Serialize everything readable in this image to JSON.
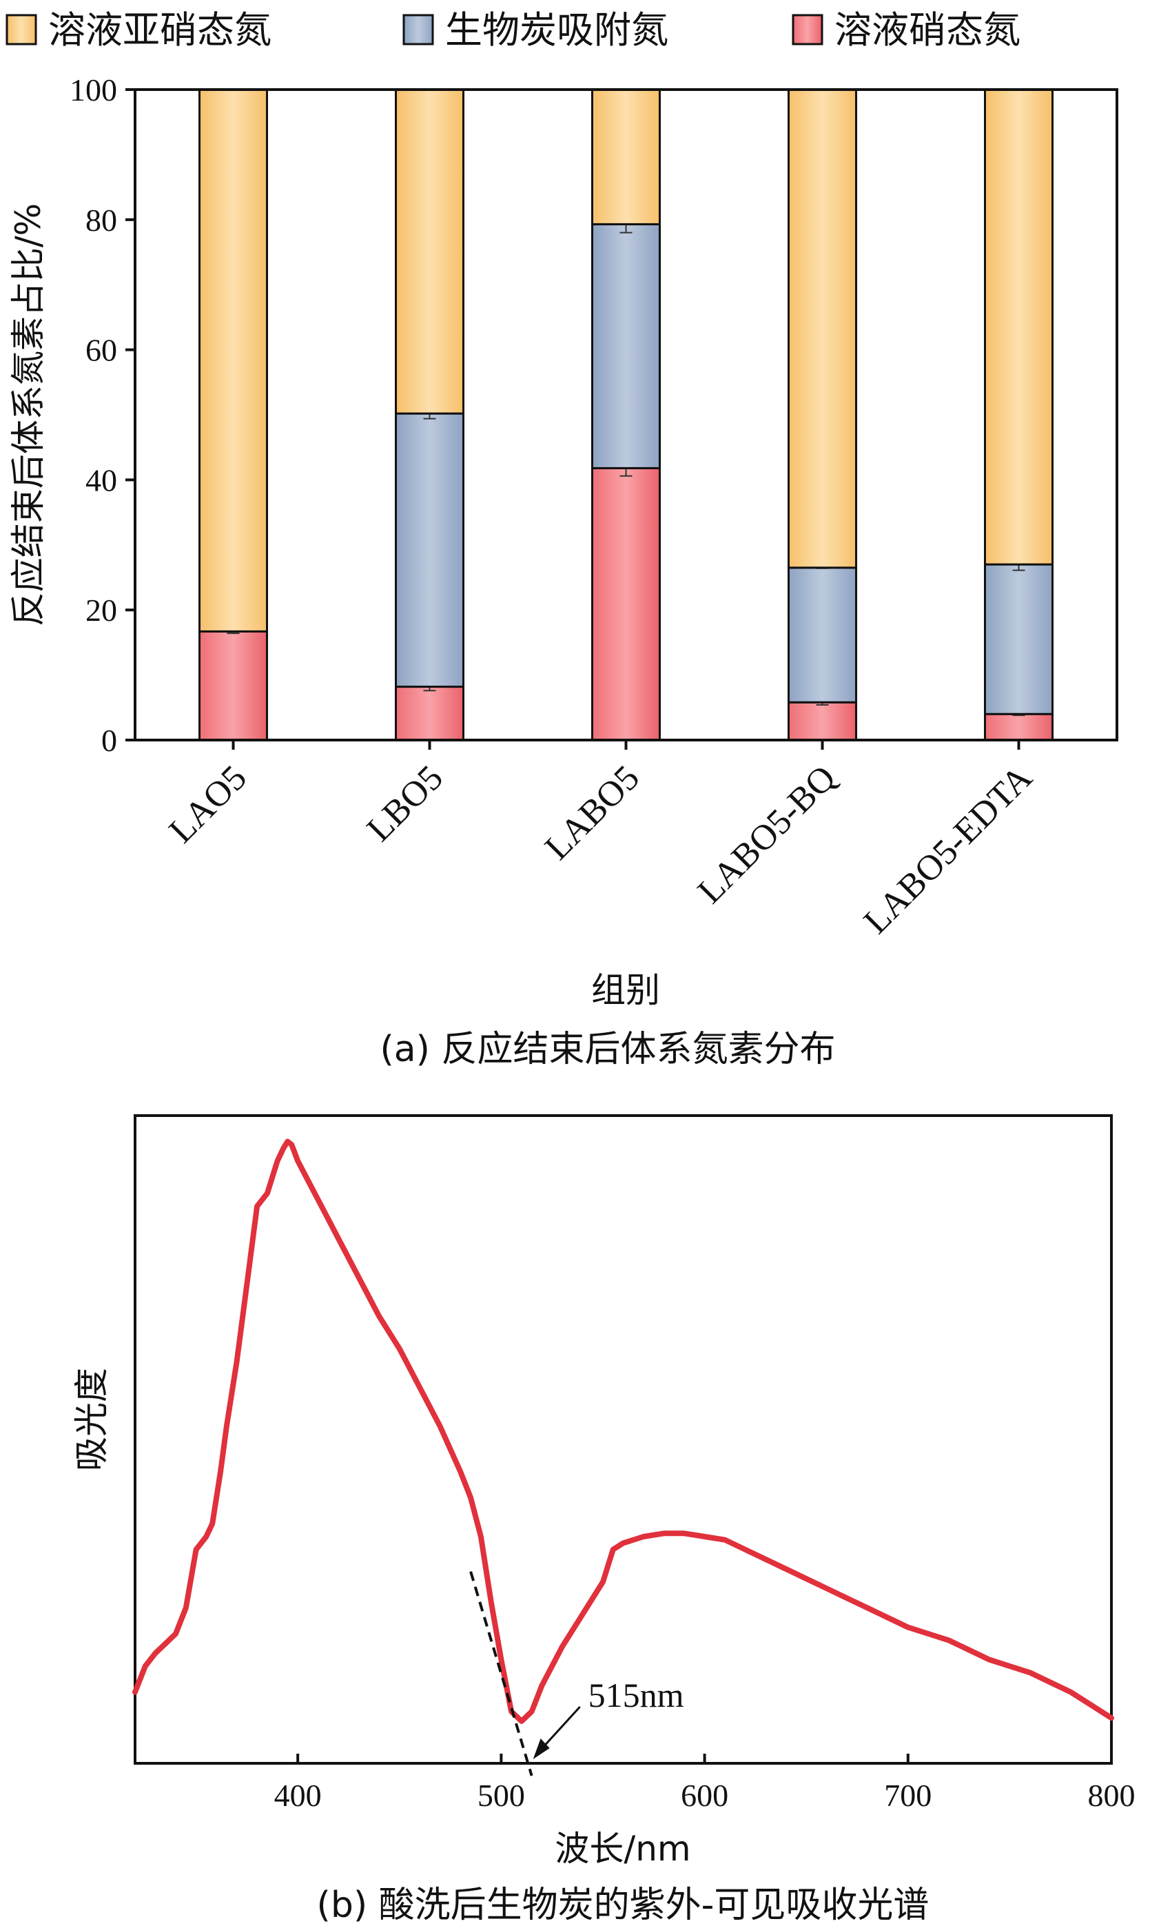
{
  "chart_data": [
    {
      "type": "bar",
      "stacked": true,
      "caption": "(a) 反应结束后体系氮素分布",
      "xlabel": "组别",
      "ylabel": "反应结束后体系氮素占比/%",
      "ylim": [
        0,
        100
      ],
      "yticks": [
        "0",
        "20",
        "40",
        "60",
        "80",
        "100"
      ],
      "categories": [
        "LAO5",
        "LBO5",
        "LABO5",
        "LABO5-BQ",
        "LABO5-EDTA"
      ],
      "legend_position": "top",
      "series": [
        {
          "name": "溶液硝态氮",
          "color": "#e8626a",
          "values": [
            16.7,
            8.2,
            41.8,
            5.8,
            4.0
          ],
          "errors": [
            0.3,
            0.6,
            1.2,
            0.4,
            0.2
          ]
        },
        {
          "name": "生物炭吸附氮",
          "color": "#97abc9",
          "values": [
            0,
            42.0,
            37.5,
            20.7,
            23.0
          ],
          "errors": [
            0,
            0.8,
            1.3,
            0.1,
            0.9
          ]
        },
        {
          "name": "溶液亚硝态氮",
          "color": "#f8c776",
          "values": [
            83.3,
            49.8,
            20.7,
            73.5,
            73.0
          ],
          "errors": [
            0,
            0,
            0,
            0,
            0
          ]
        }
      ],
      "legend_order": [
        "溶液亚硝态氮",
        "生物炭吸附氮",
        "溶液硝态氮"
      ]
    },
    {
      "type": "line",
      "caption": "(b) 酸洗后生物炭的紫外-可见吸收光谱",
      "xlabel": "波长/nm",
      "ylabel": "吸光度",
      "xlim": [
        320,
        800
      ],
      "xticks": [
        "400",
        "500",
        "600",
        "700",
        "800"
      ],
      "ylim": [
        0,
        1
      ],
      "line_color": "#e0313c",
      "annotation": {
        "text": "515nm",
        "x": 515
      },
      "tangent": [
        [
          485,
          0.296
        ],
        [
          515,
          0.0
        ]
      ],
      "series": [
        {
          "name": "",
          "x": [
            320,
            325,
            330,
            335,
            340,
            345,
            350,
            355,
            358,
            362,
            365,
            370,
            375,
            380,
            385,
            390,
            393,
            395,
            397,
            400,
            405,
            410,
            420,
            430,
            440,
            450,
            460,
            470,
            480,
            485,
            490,
            495,
            500,
            505,
            510,
            515,
            520,
            530,
            540,
            550,
            555,
            560,
            570,
            580,
            590,
            600,
            610,
            620,
            630,
            640,
            650,
            660,
            670,
            680,
            690,
            700,
            710,
            720,
            730,
            740,
            750,
            760,
            770,
            780,
            790,
            800
          ],
          "y": [
            0.11,
            0.15,
            0.17,
            0.185,
            0.2,
            0.24,
            0.33,
            0.35,
            0.37,
            0.45,
            0.52,
            0.62,
            0.74,
            0.86,
            0.88,
            0.93,
            0.95,
            0.96,
            0.955,
            0.93,
            0.9,
            0.87,
            0.81,
            0.75,
            0.69,
            0.64,
            0.58,
            0.52,
            0.45,
            0.41,
            0.35,
            0.25,
            0.16,
            0.08,
            0.065,
            0.08,
            0.12,
            0.18,
            0.23,
            0.28,
            0.33,
            0.34,
            0.35,
            0.355,
            0.355,
            0.35,
            0.345,
            0.33,
            0.315,
            0.3,
            0.285,
            0.27,
            0.255,
            0.24,
            0.225,
            0.21,
            0.2,
            0.19,
            0.175,
            0.16,
            0.15,
            0.14,
            0.125,
            0.11,
            0.09,
            0.07
          ]
        }
      ]
    }
  ]
}
